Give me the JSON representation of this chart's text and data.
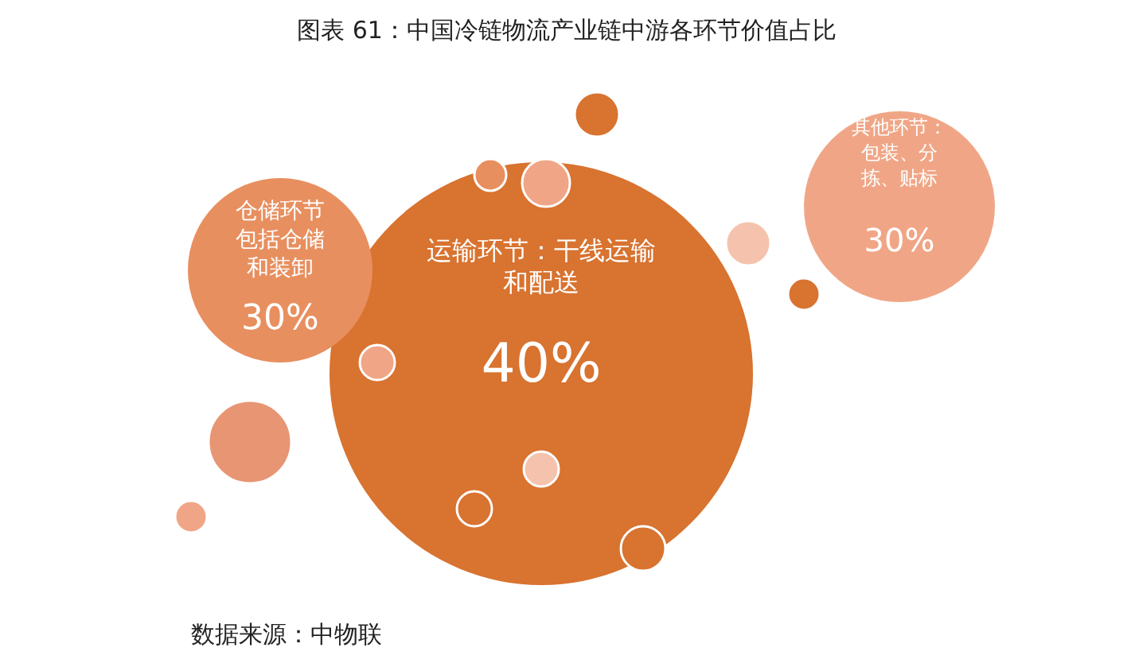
{
  "chart_data": {
    "type": "other",
    "title": "图表 61：中国冷链物流产业链中游各环节价值占比",
    "categories": [
      "运输环节：干线运输和配送",
      "仓储环节包括仓储和装卸",
      "其他环节：包装、分拣、贴标"
    ],
    "values": [
      40,
      30,
      30
    ],
    "value_labels": [
      "40%",
      "30%",
      "30%"
    ],
    "colors": [
      "#d87330",
      "#e88f5f",
      "#f0a686"
    ],
    "annotations": [
      "数据来源：中物联"
    ]
  }
}
